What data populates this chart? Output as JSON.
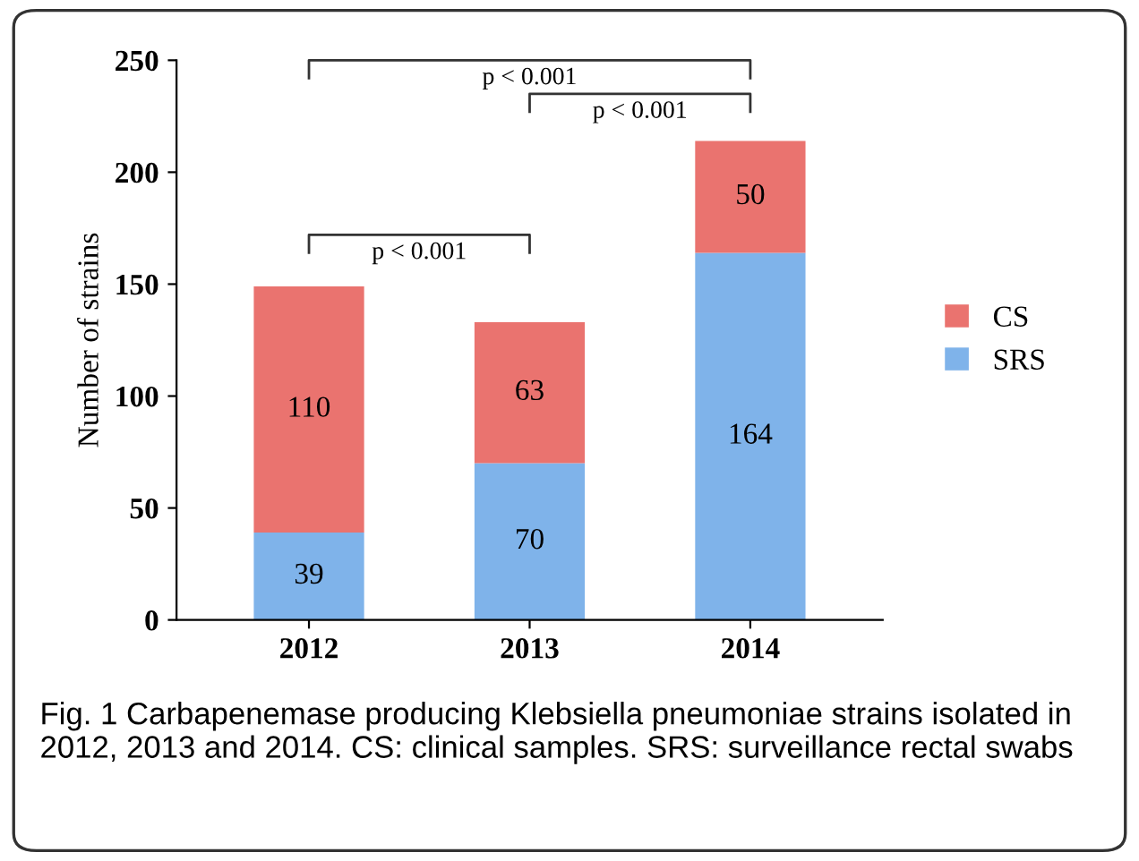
{
  "chart_data": {
    "type": "bar",
    "stacked": true,
    "ylabel": "Number of strains",
    "categories": [
      "2012",
      "2013",
      "2014"
    ],
    "series": [
      {
        "name": "SRS",
        "color": "#7fb3ea",
        "values": [
          39,
          70,
          164
        ]
      },
      {
        "name": "CS",
        "color": "#ea736f",
        "values": [
          110,
          63,
          50
        ]
      }
    ],
    "ylim": [
      0,
      250
    ],
    "yticks": [
      0,
      50,
      100,
      150,
      200,
      250
    ],
    "data_labels": true,
    "legend": "right",
    "grid": false,
    "annotations": [
      "p < 0.001",
      "p < 0.001",
      "p < 0.001",
      "Fig. 1 Carbapenemase producing Klebsiella pneumoniae strains isolated in 2012, 2013 and 2014. CS: clinical samples. SRS: surveillance rectal swabs"
    ]
  }
}
